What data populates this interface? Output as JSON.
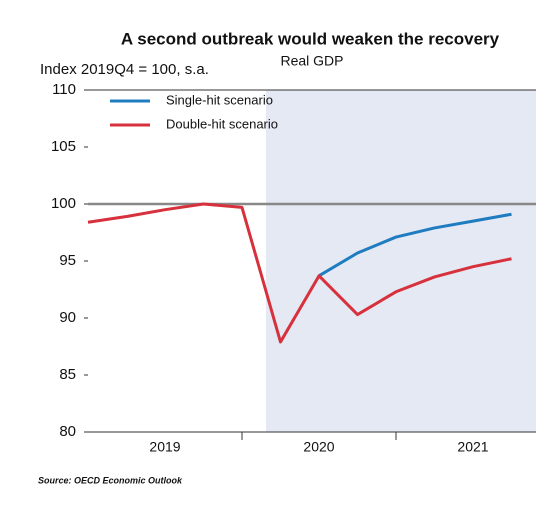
{
  "chart_data": {
    "type": "line",
    "title": "A second outbreak would weaken the recovery",
    "subtitle": "Real GDP",
    "y_axis_label": "Index 2019Q4 = 100, s.a.",
    "source": "Source: OECD Economic Outlook",
    "categories": [
      null,
      null,
      null,
      null,
      null,
      null,
      null,
      null,
      null,
      null,
      null,
      null
    ],
    "x_groups": [
      "2019",
      "2020",
      "2021"
    ],
    "series": [
      {
        "name": "Single-hit scenario",
        "color": "#1f7cc1",
        "values": [
          null,
          null,
          null,
          null,
          null,
          null,
          93.7,
          95.7,
          97.1,
          97.9,
          98.5,
          99.1
        ]
      },
      {
        "name": "Double-hit scenario",
        "color": "#d6313c",
        "values": [
          98.4,
          98.9,
          99.5,
          100,
          99.7,
          87.9,
          93.7,
          90.3,
          92.3,
          93.6,
          94.5,
          95.2
        ]
      }
    ],
    "reference_line": 100,
    "ylim": [
      80,
      110
    ],
    "yticks": [
      80,
      85,
      90,
      95,
      100,
      105,
      110
    ],
    "legend": "top-left"
  }
}
